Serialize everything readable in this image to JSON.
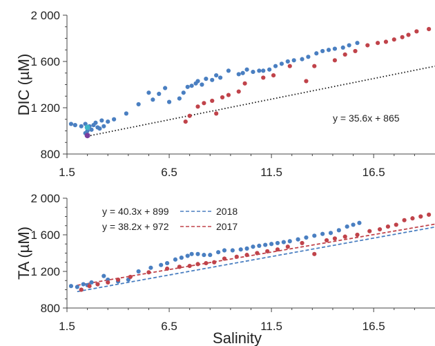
{
  "chart_data": [
    {
      "type": "scatter",
      "ylabel": "DIC (µM)",
      "xlim": [
        1.5,
        19.5
      ],
      "ylim": [
        800,
        2000
      ],
      "x_ticks": [
        1.5,
        6.5,
        11.5,
        16.5
      ],
      "x_tick_labels": [
        "1.5",
        "6.5",
        "11.5",
        "16.5"
      ],
      "y_ticks": [
        800,
        1200,
        1600,
        2000
      ],
      "y_tick_labels": [
        "800",
        "1 200",
        "1 600",
        "2 000"
      ],
      "colors": {
        "blue": "#4a7fc1",
        "red": "#c0434a",
        "trend": "#111111",
        "cyan": "#3fb6c9",
        "purple": "#7a3e9d"
      },
      "annotation": "y = 35.6x + 865",
      "trendline": {
        "slope": 35.6,
        "intercept": 865,
        "x": [
          2.5,
          19.5
        ],
        "style": "dotted"
      },
      "series": [
        {
          "color": "blue",
          "x": [
            1.7,
            1.9,
            2.2,
            2.4,
            2.4,
            2.5,
            2.6,
            2.7,
            2.8,
            2.9,
            3.0,
            3.1,
            3.2,
            3.3,
            3.5,
            3.8,
            4.4,
            5.0,
            5.5,
            5.7,
            6.0,
            6.3,
            6.5,
            7.0,
            7.2,
            7.4,
            7.6,
            7.8,
            7.9,
            8.1,
            8.3,
            8.6,
            8.8,
            9.0,
            9.4,
            9.9,
            10.1,
            10.3,
            10.6,
            10.9,
            11.1,
            11.4,
            11.7,
            12.0,
            12.3,
            12.6,
            13.0,
            13.3,
            13.7,
            14.0,
            14.3,
            14.6,
            15.0,
            15.3,
            15.7
          ],
          "y": [
            1060,
            1050,
            1040,
            1060,
            980,
            1000,
            1040,
            1010,
            1050,
            1070,
            1030,
            1020,
            1090,
            1040,
            1080,
            1100,
            1150,
            1230,
            1330,
            1270,
            1320,
            1370,
            1250,
            1280,
            1330,
            1380,
            1390,
            1410,
            1430,
            1400,
            1450,
            1440,
            1480,
            1460,
            1520,
            1490,
            1500,
            1530,
            1510,
            1520,
            1520,
            1530,
            1560,
            1580,
            1600,
            1610,
            1620,
            1640,
            1670,
            1690,
            1700,
            1710,
            1720,
            1740,
            1760
          ]
        },
        {
          "color": "red",
          "x": [
            7.3,
            7.5,
            7.9,
            8.2,
            8.6,
            8.8,
            9.1,
            9.4,
            9.9,
            10.2,
            11.1,
            11.6,
            12.4,
            13.2,
            13.6,
            14.6,
            15.1,
            15.6,
            16.2,
            16.7,
            17.1,
            17.5,
            17.9,
            18.2,
            18.6,
            19.2
          ],
          "y": [
            1080,
            1130,
            1210,
            1240,
            1260,
            1150,
            1290,
            1310,
            1340,
            1410,
            1460,
            1480,
            1560,
            1430,
            1560,
            1610,
            1660,
            1690,
            1740,
            1760,
            1770,
            1790,
            1810,
            1830,
            1860,
            1880
          ]
        },
        {
          "color": "cyan",
          "x": [
            2.5
          ],
          "y": [
            1030
          ]
        },
        {
          "color": "purple",
          "x": [
            2.5
          ],
          "y": [
            960
          ]
        }
      ]
    },
    {
      "type": "scatter",
      "ylabel": "TA (µM)",
      "xlabel": "Salinity",
      "xlim": [
        1.5,
        19.5
      ],
      "ylim": [
        800,
        2000
      ],
      "x_ticks": [
        1.5,
        6.5,
        11.5,
        16.5
      ],
      "x_tick_labels": [
        "1.5",
        "6.5",
        "11.5",
        "16.5"
      ],
      "y_ticks": [
        800,
        1200,
        1600,
        2000
      ],
      "y_tick_labels": [
        "800",
        "1 200",
        "1 600",
        "2 000"
      ],
      "colors": {
        "blue": "#4a7fc1",
        "red": "#c0434a"
      },
      "legend": [
        {
          "equation": "y = 40.3x + 899",
          "name": "2018",
          "color": "blue"
        },
        {
          "equation": "y = 38.2x + 972",
          "name": "2017",
          "color": "red"
        }
      ],
      "trendlines": [
        {
          "color": "blue",
          "slope": 40.3,
          "intercept": 899,
          "x": [
            2.0,
            19.5
          ],
          "style": "dashed"
        },
        {
          "color": "red",
          "slope": 38.2,
          "intercept": 972,
          "x": [
            2.0,
            19.5
          ],
          "style": "dashed"
        }
      ],
      "series": [
        {
          "color": "blue",
          "x": [
            1.7,
            2.0,
            2.3,
            2.5,
            2.7,
            3.0,
            3.3,
            3.5,
            4.0,
            4.5,
            5.0,
            5.6,
            6.1,
            6.4,
            6.8,
            7.1,
            7.4,
            7.6,
            7.9,
            8.2,
            8.5,
            8.9,
            9.2,
            9.6,
            10.0,
            10.3,
            10.6,
            10.9,
            11.2,
            11.5,
            11.8,
            12.1,
            12.4,
            12.8,
            13.2,
            13.6,
            14.0,
            14.4,
            14.8,
            15.2,
            15.5,
            15.8
          ],
          "y": [
            1040,
            1030,
            1060,
            1050,
            1080,
            1060,
            1150,
            1110,
            1090,
            1110,
            1200,
            1240,
            1270,
            1290,
            1330,
            1350,
            1370,
            1390,
            1390,
            1380,
            1380,
            1410,
            1430,
            1430,
            1440,
            1450,
            1470,
            1480,
            1490,
            1500,
            1510,
            1520,
            1530,
            1550,
            1570,
            1590,
            1610,
            1620,
            1650,
            1690,
            1710,
            1730
          ]
        },
        {
          "color": "red",
          "x": [
            2.2,
            2.6,
            3.0,
            3.5,
            4.0,
            4.6,
            5.5,
            6.4,
            7.0,
            7.5,
            7.9,
            8.3,
            8.7,
            9.2,
            9.8,
            10.3,
            10.8,
            11.3,
            11.8,
            12.3,
            13.0,
            13.6,
            14.2,
            14.6,
            15.1,
            15.7,
            16.3,
            16.8,
            17.2,
            17.6,
            18.0,
            18.4,
            18.8,
            19.2
          ],
          "y": [
            1000,
            1040,
            1060,
            1080,
            1110,
            1140,
            1190,
            1230,
            1250,
            1260,
            1280,
            1290,
            1300,
            1340,
            1360,
            1380,
            1400,
            1420,
            1440,
            1470,
            1510,
            1390,
            1540,
            1560,
            1580,
            1600,
            1640,
            1660,
            1690,
            1710,
            1760,
            1780,
            1800,
            1820
          ]
        }
      ]
    }
  ]
}
